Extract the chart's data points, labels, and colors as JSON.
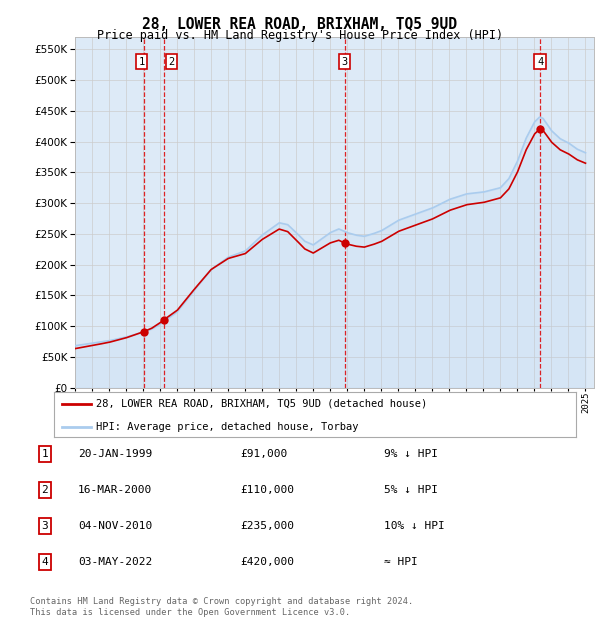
{
  "title": "28, LOWER REA ROAD, BRIXHAM, TQ5 9UD",
  "subtitle": "Price paid vs. HM Land Registry's House Price Index (HPI)",
  "ylim": [
    0,
    570000
  ],
  "yticks": [
    0,
    50000,
    100000,
    150000,
    200000,
    250000,
    300000,
    350000,
    400000,
    450000,
    500000,
    550000
  ],
  "x_start_year": 1995,
  "x_end_year": 2025,
  "legend_label_red": "28, LOWER REA ROAD, BRIXHAM, TQ5 9UD (detached house)",
  "legend_label_blue": "HPI: Average price, detached house, Torbay",
  "sale_points": [
    {
      "label": "1",
      "year": 1999.05,
      "price": 91000,
      "date": "20-JAN-1999",
      "amount": "£91,000",
      "note": "9% ↓ HPI"
    },
    {
      "label": "2",
      "year": 2000.21,
      "price": 110000,
      "date": "16-MAR-2000",
      "amount": "£110,000",
      "note": "5% ↓ HPI"
    },
    {
      "label": "3",
      "year": 2010.84,
      "price": 235000,
      "date": "04-NOV-2010",
      "amount": "£235,000",
      "note": "10% ↓ HPI"
    },
    {
      "label": "4",
      "year": 2022.34,
      "price": 420000,
      "date": "03-MAY-2022",
      "amount": "£420,000",
      "note": "≈ HPI"
    }
  ],
  "vline_color": "#dd0000",
  "sale_dot_color": "#cc0000",
  "hpi_line_color": "#aaccee",
  "price_line_color": "#cc0000",
  "grid_color": "#cccccc",
  "bg_color": "#ddeaf7",
  "footnote": "Contains HM Land Registry data © Crown copyright and database right 2024.\nThis data is licensed under the Open Government Licence v3.0.",
  "table_rows": [
    [
      "1",
      "20-JAN-1999",
      "£91,000",
      "9% ↓ HPI"
    ],
    [
      "2",
      "16-MAR-2000",
      "£110,000",
      "5% ↓ HPI"
    ],
    [
      "3",
      "04-NOV-2010",
      "£235,000",
      "10% ↓ HPI"
    ],
    [
      "4",
      "03-MAY-2022",
      "£420,000",
      "≈ HPI"
    ]
  ],
  "hpi_keypoints": [
    [
      1995.0,
      68000
    ],
    [
      1996.0,
      72000
    ],
    [
      1997.0,
      76000
    ],
    [
      1998.0,
      82000
    ],
    [
      1999.0,
      90000
    ],
    [
      1999.5,
      95000
    ],
    [
      2000.0,
      103000
    ],
    [
      2001.0,
      123000
    ],
    [
      2002.0,
      158000
    ],
    [
      2003.0,
      192000
    ],
    [
      2004.0,
      212000
    ],
    [
      2005.0,
      222000
    ],
    [
      2006.0,
      248000
    ],
    [
      2007.0,
      268000
    ],
    [
      2007.5,
      265000
    ],
    [
      2008.0,
      252000
    ],
    [
      2008.5,
      238000
    ],
    [
      2009.0,
      232000
    ],
    [
      2009.5,
      242000
    ],
    [
      2010.0,
      252000
    ],
    [
      2010.5,
      258000
    ],
    [
      2011.0,
      252000
    ],
    [
      2011.5,
      248000
    ],
    [
      2012.0,
      246000
    ],
    [
      2012.5,
      250000
    ],
    [
      2013.0,
      255000
    ],
    [
      2014.0,
      272000
    ],
    [
      2015.0,
      282000
    ],
    [
      2016.0,
      292000
    ],
    [
      2017.0,
      306000
    ],
    [
      2018.0,
      315000
    ],
    [
      2019.0,
      318000
    ],
    [
      2020.0,
      325000
    ],
    [
      2020.5,
      340000
    ],
    [
      2021.0,
      368000
    ],
    [
      2021.5,
      405000
    ],
    [
      2022.0,
      432000
    ],
    [
      2022.3,
      440000
    ],
    [
      2022.5,
      438000
    ],
    [
      2023.0,
      418000
    ],
    [
      2023.5,
      405000
    ],
    [
      2024.0,
      398000
    ],
    [
      2024.5,
      388000
    ],
    [
      2025.0,
      382000
    ]
  ],
  "sale_years": [
    1999.05,
    2000.21,
    2010.84,
    2022.34
  ],
  "sale_prices": [
    91000,
    110000,
    235000,
    420000
  ]
}
